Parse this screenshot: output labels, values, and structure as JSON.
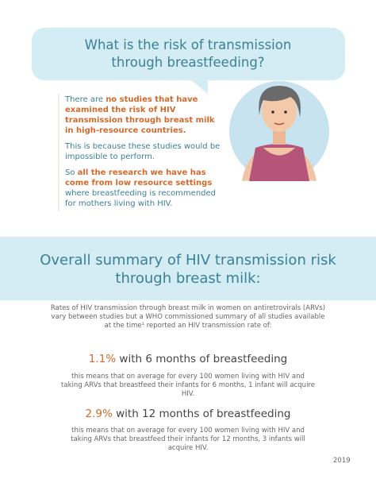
{
  "bubble": {
    "title": "What is the risk of transmission through breastfeeding?"
  },
  "intro": {
    "paragraphs": [
      {
        "lead": "There are",
        "highlight": "no studies that have examined the risk of HIV transmission through breast milk in high-resource countries."
      },
      {
        "text": "This is because these studies would be impossible to perform."
      },
      {
        "lead": "So",
        "highlight": "all the research we have has come from low resource settings",
        "tail": "where breastfeeding is recommended for mothers living with HIV."
      }
    ]
  },
  "summary": {
    "title": "Overall summary of HIV transmission risk through breast milk:",
    "text": "Rates of HIV transmission through breast milk in women on antiretrovirals (ARVs) vary between studies but a WHO commissioned summary of all studies available at the time¹ reported an HIV transmission rate of:",
    "rates": [
      {
        "rate": "1.1%",
        "label": "with 6 months of breastfeeding",
        "note": "this means that on average for every 100 women living with HIV and taking ARVs that breastfeed their infants for 6 months, 1 infant will acquire HIV."
      },
      {
        "rate": "2.9%",
        "label": "with 12 months of breastfeeding",
        "note": "this means that on average for every 100 women living with HIV and taking ARVs that breastfeed their infants for 12 months, 3 infants will acquire HIV."
      }
    ]
  },
  "footer": {
    "year": "2019"
  }
}
